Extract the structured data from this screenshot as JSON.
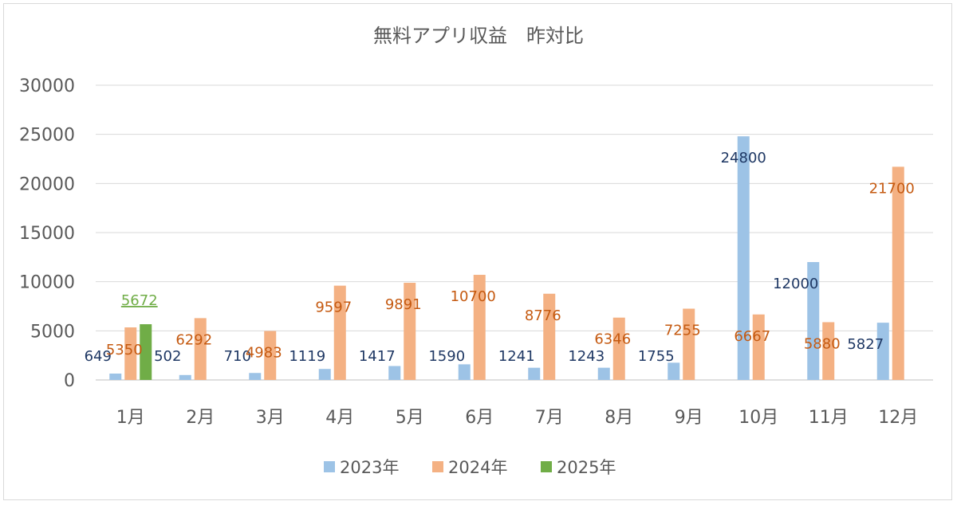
{
  "chart_data": {
    "type": "bar",
    "title": "無料アプリ収益　昨対比",
    "categories": [
      "1月",
      "2月",
      "3月",
      "4月",
      "5月",
      "6月",
      "7月",
      "8月",
      "9月",
      "10月",
      "11月",
      "12月"
    ],
    "ylim": [
      0,
      30000
    ],
    "yticks": [
      0,
      5000,
      10000,
      15000,
      20000,
      25000,
      30000
    ],
    "grid": true,
    "legend_position": "bottom",
    "series": [
      {
        "name": "2023年",
        "color": "#9dc3e6",
        "label_color": "#1f3864",
        "values": [
          649,
          502,
          710,
          1119,
          1417,
          1590,
          1241,
          1243,
          1755,
          24800,
          12000,
          5827
        ],
        "labels": [
          "649",
          "502",
          "710",
          "1119",
          "1417",
          "1590",
          "1241",
          "1243",
          "1755",
          "24800",
          "12000",
          "5827"
        ]
      },
      {
        "name": "2024年",
        "color": "#f4b183",
        "label_color": "#c55a11",
        "values": [
          5350,
          6292,
          4983,
          9597,
          9891,
          10700,
          8776,
          6346,
          7255,
          6667,
          5880,
          21700
        ],
        "labels": [
          "5350",
          "6292",
          "4983",
          "9597",
          "9891",
          "10700",
          "8776",
          "6346",
          "7255",
          "6667",
          "5880",
          "21700"
        ]
      },
      {
        "name": "2025年",
        "color": "#70ad47",
        "label_color": "#70ad47",
        "values": [
          5672,
          null,
          null,
          null,
          null,
          null,
          null,
          null,
          null,
          null,
          null,
          null
        ],
        "labels": [
          "5672",
          "",
          "",
          "",
          "",
          "",
          "",
          "",
          "",
          "",
          "",
          ""
        ]
      }
    ]
  }
}
